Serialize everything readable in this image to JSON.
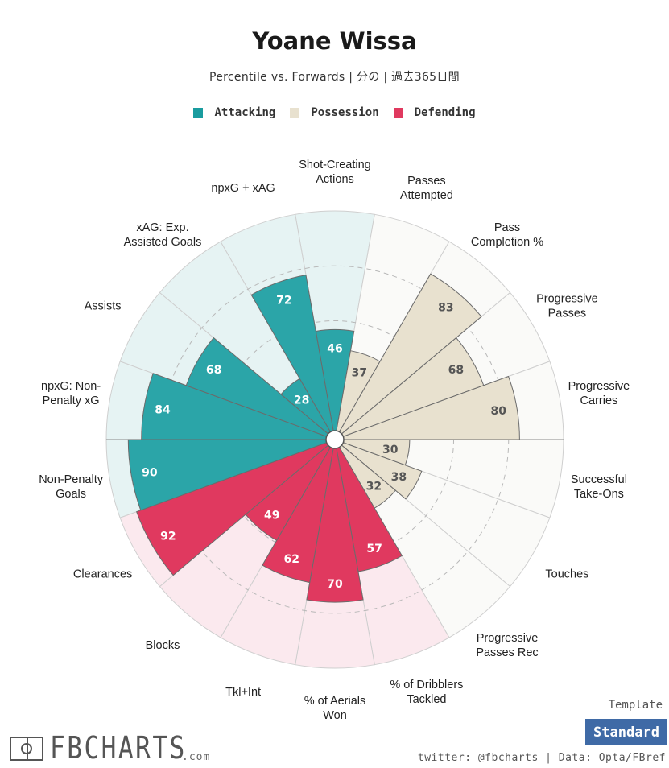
{
  "title": "Yoane Wissa",
  "subtitle": "Percentile vs. Forwards | 分の | 過去365日間",
  "legend": [
    {
      "label": "Attacking",
      "color": "#1a9c9f"
    },
    {
      "label": "Possession",
      "color": "#e8e1cf"
    },
    {
      "label": "Defending",
      "color": "#e0395f"
    }
  ],
  "chart_data": {
    "type": "radar-bar",
    "title": "Yoane Wissa",
    "subtitle": "Percentile vs. Forwards | 分の | 過去365日間",
    "rlim": [
      0,
      100
    ],
    "grid": true,
    "categories": [
      {
        "label": "Shot-Creating Actions",
        "value": 46,
        "group": "Attacking"
      },
      {
        "label": "Passes Attempted",
        "value": 37,
        "group": "Possession"
      },
      {
        "label": "Pass Completion %",
        "value": 83,
        "group": "Possession"
      },
      {
        "label": "Progressive Passes",
        "value": 68,
        "group": "Possession"
      },
      {
        "label": "Progressive Carries",
        "value": 80,
        "group": "Possession"
      },
      {
        "label": "Successful Take-Ons",
        "value": 30,
        "group": "Possession"
      },
      {
        "label": "Touches",
        "value": 38,
        "group": "Possession"
      },
      {
        "label": "Progressive Passes Rec",
        "value": 32,
        "group": "Possession"
      },
      {
        "label": "% of Dribblers Tackled",
        "value": 57,
        "group": "Defending"
      },
      {
        "label": "% of Aerials Won",
        "value": 70,
        "group": "Defending"
      },
      {
        "label": "Tkl+Int",
        "value": 62,
        "group": "Defending"
      },
      {
        "label": "Blocks",
        "value": 49,
        "group": "Defending"
      },
      {
        "label": "Clearances",
        "value": 92,
        "group": "Defending"
      },
      {
        "label": "Non-Penalty Goals",
        "value": 90,
        "group": "Attacking"
      },
      {
        "label": "npxG: Non-Penalty xG",
        "value": 84,
        "group": "Attacking"
      },
      {
        "label": "Assists",
        "value": 68,
        "group": "Attacking"
      },
      {
        "label": "xAG: Exp. Assisted Goals",
        "value": 28,
        "group": "Attacking"
      },
      {
        "label": "npxG + xAG",
        "value": 72,
        "group": "Attacking"
      }
    ],
    "label_lines": [
      [
        "Shot-Creating",
        "Actions"
      ],
      [
        "Passes",
        "Attempted"
      ],
      [
        "Pass",
        "Completion %"
      ],
      [
        "Progressive",
        "Passes"
      ],
      [
        "Progressive",
        "Carries"
      ],
      [
        "Successful",
        "Take-Ons"
      ],
      [
        "Touches"
      ],
      [
        "Progressive",
        "Passes Rec"
      ],
      [
        "% of Dribblers",
        "Tackled"
      ],
      [
        "% of Aerials",
        "Won"
      ],
      [
        "Tkl+Int"
      ],
      [
        "Blocks"
      ],
      [
        "Clearances"
      ],
      [
        "Non-Penalty",
        "Goals"
      ],
      [
        "npxG: Non-",
        "Penalty xG"
      ],
      [
        "Assists"
      ],
      [
        "xAG: Exp.",
        "Assisted Goals"
      ],
      [
        "npxG + xAG"
      ]
    ],
    "colors": {
      "Attacking": {
        "fill": "#2ba5a8",
        "bg": "#e6f3f3"
      },
      "Possession": {
        "fill": "#e8e1cf",
        "bg": "#fafaf8"
      },
      "Defending": {
        "fill": "#e0395f",
        "bg": "#fbe9ee"
      }
    }
  },
  "footer": {
    "logo_text": "FBCHARTS",
    "logo_suffix": ".com",
    "template_label": "Template",
    "template_value": "Standard",
    "credits": "twitter: @fbcharts | Data: Opta/FBref"
  }
}
